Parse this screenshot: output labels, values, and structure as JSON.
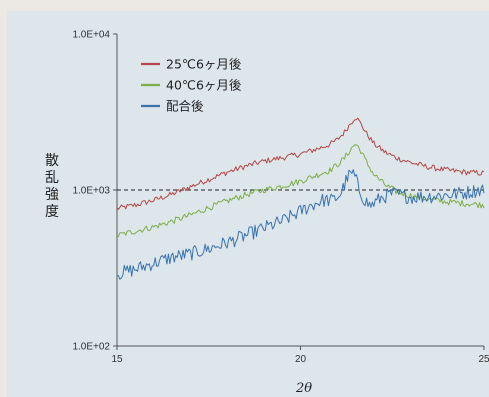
{
  "chart_data": {
    "type": "line",
    "xlabel": "2θ",
    "ylabel": "散乱強度",
    "xlim": [
      15,
      25
    ],
    "ylim": [
      100,
      10000
    ],
    "yscale": "log",
    "x_ticks": [
      {
        "value": 15,
        "label": "15"
      },
      {
        "value": 20,
        "label": "20"
      },
      {
        "value": 25,
        "label": "25"
      }
    ],
    "y_ticks": [
      {
        "value": 100,
        "label": "1.0E+02"
      },
      {
        "value": 1000,
        "label": "1.0E+03"
      },
      {
        "value": 10000,
        "label": "1.0E+04"
      }
    ],
    "reference_line": {
      "y": 1000,
      "style": "dashed"
    },
    "legend_position": "top-left",
    "grid": false,
    "series": [
      {
        "name": "25℃6ヶ月後",
        "color": "#b84646",
        "x": [
          15,
          15.5,
          16,
          16.5,
          17,
          17.5,
          18,
          18.5,
          19,
          19.5,
          20,
          20.5,
          20.8,
          21.0,
          21.2,
          21.35,
          21.5,
          21.65,
          21.8,
          22.0,
          22.3,
          22.6,
          23,
          23.5,
          24,
          24.5,
          25
        ],
        "y": [
          760,
          800,
          860,
          940,
          1050,
          1170,
          1300,
          1420,
          1530,
          1610,
          1700,
          1850,
          1960,
          2100,
          2350,
          2650,
          2950,
          2650,
          2300,
          1980,
          1750,
          1610,
          1500,
          1400,
          1340,
          1300,
          1280
        ]
      },
      {
        "name": "40℃6ヶ月後",
        "color": "#7fae46",
        "x": [
          15,
          15.5,
          16,
          16.5,
          17,
          17.5,
          18,
          18.5,
          19,
          19.5,
          20,
          20.5,
          20.8,
          21.0,
          21.2,
          21.35,
          21.5,
          21.65,
          21.8,
          22.0,
          22.3,
          22.6,
          23,
          23.5,
          24,
          24.5,
          25
        ],
        "y": [
          510,
          545,
          580,
          630,
          690,
          770,
          850,
          930,
          1000,
          1060,
          1140,
          1260,
          1340,
          1450,
          1600,
          1800,
          1980,
          1780,
          1500,
          1260,
          1080,
          980,
          920,
          870,
          840,
          820,
          800
        ]
      },
      {
        "name": "配合後",
        "color": "#3a72b0",
        "x": [
          15,
          15.5,
          16,
          16.5,
          17,
          17.5,
          18,
          18.5,
          19,
          19.5,
          20,
          20.3,
          20.6,
          20.9,
          21.1,
          21.3,
          21.45,
          21.6,
          21.75,
          21.9,
          22.2,
          22.5,
          23,
          23.5,
          24,
          24.5,
          25
        ],
        "y": [
          290,
          310,
          340,
          370,
          390,
          420,
          460,
          510,
          570,
          630,
          730,
          800,
          860,
          860,
          950,
          1230,
          1280,
          1000,
          860,
          790,
          890,
          950,
          900,
          910,
          930,
          960,
          1020
        ]
      }
    ]
  }
}
